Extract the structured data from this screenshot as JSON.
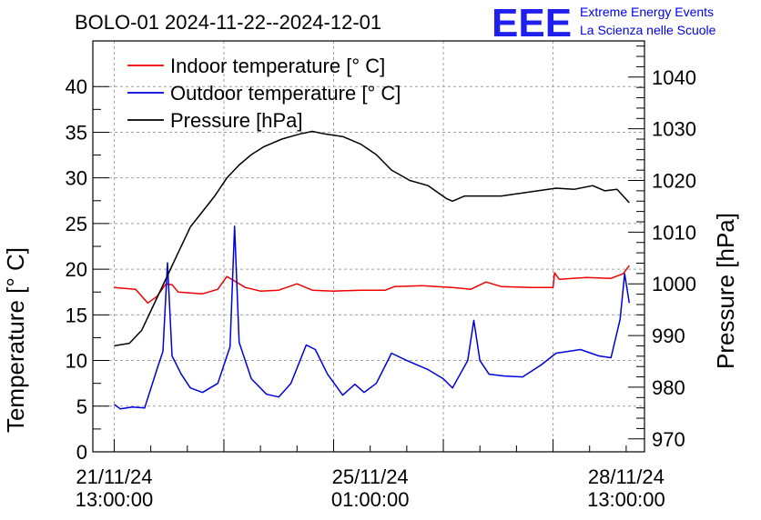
{
  "brand": {
    "logo": "EEE",
    "line1": "Extreme Energy Events",
    "line2": "La Scienza nelle Scuole",
    "color": "#2020ee"
  },
  "chart_data": {
    "type": "line",
    "title": "BOLO-01 2024-11-22--2024-12-01",
    "ylabel": "Temperature [° C]",
    "y2label": "Pressure [hPa]",
    "xlabel": "",
    "ylim": [
      0,
      45
    ],
    "y2lim": [
      967.5,
      1047
    ],
    "xlim": [
      "2024-11-21 06:00",
      "2024-11-28 19:00"
    ],
    "grid": true,
    "legend_position": "top-left",
    "yticks": [
      0,
      5,
      10,
      15,
      20,
      25,
      30,
      35,
      40
    ],
    "y2ticks": [
      970,
      980,
      990,
      1000,
      1010,
      1020,
      1030,
      1040
    ],
    "xtick_labels": [
      {
        "x": "2024-11-21 13:00",
        "line1": "21/11/24",
        "line2": "13:00:00"
      },
      {
        "x": "2024-11-25 01:00",
        "line1": "25/11/24",
        "line2": "01:00:00"
      },
      {
        "x": "2024-11-28 13:00",
        "line1": "28/11/24",
        "line2": "13:00:00"
      }
    ],
    "series": [
      {
        "name": "Indoor temperature [° C]",
        "color": "#ee0000",
        "axis": "left",
        "points": [
          [
            "2024-11-21 13:00",
            18.0
          ],
          [
            "2024-11-21 20:00",
            17.8
          ],
          [
            "2024-11-22 00:00",
            16.3
          ],
          [
            "2024-11-22 03:00",
            17.0
          ],
          [
            "2024-11-22 06:00",
            18.4
          ],
          [
            "2024-11-22 08:00",
            18.3
          ],
          [
            "2024-11-22 10:00",
            17.5
          ],
          [
            "2024-11-22 18:00",
            17.3
          ],
          [
            "2024-11-22 23:00",
            17.8
          ],
          [
            "2024-11-23 02:00",
            19.2
          ],
          [
            "2024-11-23 08:00",
            18.0
          ],
          [
            "2024-11-23 13:00",
            17.6
          ],
          [
            "2024-11-23 19:00",
            17.7
          ],
          [
            "2024-11-24 01:00",
            18.4
          ],
          [
            "2024-11-24 06:00",
            17.7
          ],
          [
            "2024-11-24 13:00",
            17.6
          ],
          [
            "2024-11-24 22:00",
            17.7
          ],
          [
            "2024-11-25 06:00",
            17.7
          ],
          [
            "2024-11-25 09:00",
            18.1
          ],
          [
            "2024-11-25 18:00",
            18.2
          ],
          [
            "2024-11-26 04:00",
            18.0
          ],
          [
            "2024-11-26 10:00",
            17.8
          ],
          [
            "2024-11-26 15:00",
            18.6
          ],
          [
            "2024-11-26 20:00",
            18.1
          ],
          [
            "2024-11-27 06:00",
            18.0
          ],
          [
            "2024-11-27 13:00",
            18.0
          ],
          [
            "2024-11-27 13:30",
            19.6
          ],
          [
            "2024-11-27 15:00",
            18.9
          ],
          [
            "2024-11-28 00:00",
            19.1
          ],
          [
            "2024-11-28 08:00",
            19.0
          ],
          [
            "2024-11-28 12:00",
            19.5
          ],
          [
            "2024-11-28 14:00",
            20.4
          ]
        ]
      },
      {
        "name": "Outdoor temperature [° C]",
        "color": "#0000dd",
        "axis": "left",
        "points": [
          [
            "2024-11-21 13:00",
            5.2
          ],
          [
            "2024-11-21 15:00",
            4.7
          ],
          [
            "2024-11-21 19:00",
            4.9
          ],
          [
            "2024-11-21 23:00",
            4.8
          ],
          [
            "2024-11-22 03:00",
            9.0
          ],
          [
            "2024-11-22 05:00",
            11.0
          ],
          [
            "2024-11-22 06:30",
            20.7
          ],
          [
            "2024-11-22 08:00",
            10.5
          ],
          [
            "2024-11-22 11:00",
            8.5
          ],
          [
            "2024-11-22 14:00",
            7.0
          ],
          [
            "2024-11-22 18:00",
            6.5
          ],
          [
            "2024-11-22 23:00",
            7.5
          ],
          [
            "2024-11-23 03:00",
            11.5
          ],
          [
            "2024-11-23 04:30",
            24.7
          ],
          [
            "2024-11-23 06:00",
            12.0
          ],
          [
            "2024-11-23 10:00",
            8.0
          ],
          [
            "2024-11-23 15:00",
            6.3
          ],
          [
            "2024-11-23 19:00",
            6.0
          ],
          [
            "2024-11-23 23:00",
            7.5
          ],
          [
            "2024-11-24 04:00",
            11.7
          ],
          [
            "2024-11-24 07:00",
            11.2
          ],
          [
            "2024-11-24 11:00",
            8.5
          ],
          [
            "2024-11-24 16:00",
            6.2
          ],
          [
            "2024-11-24 20:00",
            7.4
          ],
          [
            "2024-11-24 23:00",
            6.5
          ],
          [
            "2024-11-25 03:00",
            7.5
          ],
          [
            "2024-11-25 08:00",
            10.8
          ],
          [
            "2024-11-25 13:00",
            10.0
          ],
          [
            "2024-11-25 20:00",
            9.0
          ],
          [
            "2024-11-26 01:00",
            8.0
          ],
          [
            "2024-11-26 04:00",
            7.0
          ],
          [
            "2024-11-26 09:00",
            10.0
          ],
          [
            "2024-11-26 11:00",
            14.4
          ],
          [
            "2024-11-26 13:00",
            10.0
          ],
          [
            "2024-11-26 16:00",
            8.5
          ],
          [
            "2024-11-26 21:00",
            8.3
          ],
          [
            "2024-11-27 03:00",
            8.2
          ],
          [
            "2024-11-27 09:00",
            9.5
          ],
          [
            "2024-11-27 14:00",
            10.8
          ],
          [
            "2024-11-27 22:00",
            11.2
          ],
          [
            "2024-11-28 04:00",
            10.5
          ],
          [
            "2024-11-28 08:00",
            10.3
          ],
          [
            "2024-11-28 11:00",
            14.5
          ],
          [
            "2024-11-28 12:30",
            19.5
          ],
          [
            "2024-11-28 14:00",
            16.3
          ]
        ]
      },
      {
        "name": "Pressure [hPa]",
        "color": "#000000",
        "axis": "right",
        "points": [
          [
            "2024-11-21 13:00",
            988
          ],
          [
            "2024-11-21 18:00",
            988.5
          ],
          [
            "2024-11-21 22:00",
            991
          ],
          [
            "2024-11-22 02:00",
            996
          ],
          [
            "2024-11-22 06:00",
            1001
          ],
          [
            "2024-11-22 10:00",
            1006
          ],
          [
            "2024-11-22 14:00",
            1011
          ],
          [
            "2024-11-22 18:00",
            1014
          ],
          [
            "2024-11-22 22:00",
            1017
          ],
          [
            "2024-11-23 02:00",
            1020.5
          ],
          [
            "2024-11-23 06:00",
            1023
          ],
          [
            "2024-11-23 10:00",
            1025
          ],
          [
            "2024-11-23 14:00",
            1026.5
          ],
          [
            "2024-11-23 20:00",
            1028
          ],
          [
            "2024-11-24 02:00",
            1029
          ],
          [
            "2024-11-24 06:00",
            1029.5
          ],
          [
            "2024-11-24 10:00",
            1029
          ],
          [
            "2024-11-24 16:00",
            1028.5
          ],
          [
            "2024-11-24 22:00",
            1027
          ],
          [
            "2024-11-25 03:00",
            1025
          ],
          [
            "2024-11-25 08:00",
            1022
          ],
          [
            "2024-11-25 14:00",
            1020
          ],
          [
            "2024-11-25 20:00",
            1019
          ],
          [
            "2024-11-26 02:00",
            1016.5
          ],
          [
            "2024-11-26 04:00",
            1016
          ],
          [
            "2024-11-26 08:00",
            1017
          ],
          [
            "2024-11-26 14:00",
            1017
          ],
          [
            "2024-11-26 20:00",
            1017
          ],
          [
            "2024-11-27 02:00",
            1017.5
          ],
          [
            "2024-11-27 08:00",
            1018
          ],
          [
            "2024-11-27 14:00",
            1018.5
          ],
          [
            "2024-11-27 20:00",
            1018.3
          ],
          [
            "2024-11-28 02:00",
            1019
          ],
          [
            "2024-11-28 06:00",
            1018
          ],
          [
            "2024-11-28 10:00",
            1018.3
          ],
          [
            "2024-11-28 14:00",
            1015.7
          ]
        ]
      }
    ]
  }
}
